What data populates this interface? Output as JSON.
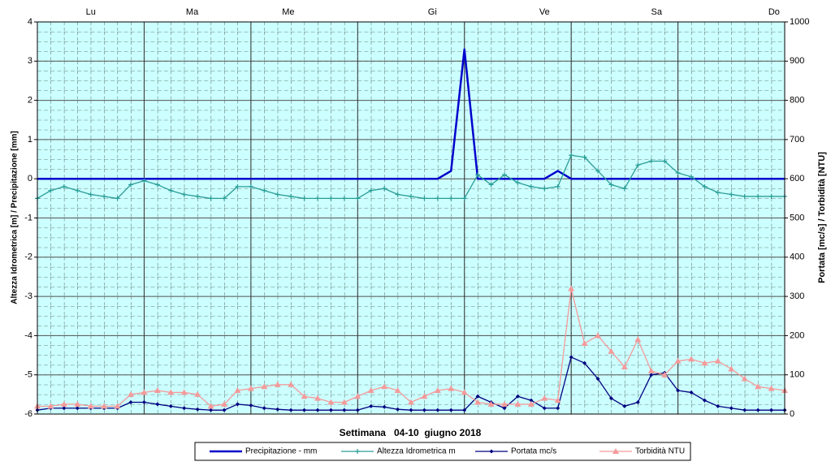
{
  "chart_data": {
    "type": "line",
    "xlabel": "Settimana   04-10  giugno 2018",
    "ylabel": "Altezza Idrometrica [m] / Precipitazione [mm]",
    "y2label": "Portata [mc/s] / Torbidità [NTU]",
    "xlim": [
      0,
      7
    ],
    "xticks": [
      {
        "value": 0.5,
        "label": "Lu"
      },
      {
        "value": 1.45,
        "label": "Ma"
      },
      {
        "value": 2.35,
        "label": "Me"
      },
      {
        "value": 3.7,
        "label": "Gi"
      },
      {
        "value": 4.75,
        "label": "Ve"
      },
      {
        "value": 5.8,
        "label": "Sa"
      },
      {
        "value": 6.9,
        "label": "Do"
      }
    ],
    "x_gridlines": [
      0,
      1,
      2,
      3,
      4,
      5,
      6,
      7
    ],
    "ylim": [
      -6,
      4
    ],
    "yticks": [
      -6,
      -5,
      -4,
      -3,
      -2,
      -1,
      0,
      1,
      2,
      3,
      4
    ],
    "y2lim": [
      0,
      1000
    ],
    "y2ticks": [
      0,
      100,
      200,
      300,
      400,
      500,
      600,
      700,
      800,
      900,
      1000
    ],
    "grid": true,
    "background": "#ccffff",
    "legend": "bottom",
    "x": [
      0,
      0.125,
      0.25,
      0.375,
      0.5,
      0.625,
      0.75,
      0.875,
      1,
      1.125,
      1.25,
      1.375,
      1.5,
      1.625,
      1.75,
      1.875,
      2,
      2.125,
      2.25,
      2.375,
      2.5,
      2.625,
      2.75,
      2.875,
      3,
      3.125,
      3.25,
      3.375,
      3.5,
      3.625,
      3.75,
      3.875,
      4,
      4.125,
      4.25,
      4.375,
      4.5,
      4.625,
      4.75,
      4.875,
      5,
      5.125,
      5.25,
      5.375,
      5.5,
      5.625,
      5.75,
      5.875,
      6,
      6.125,
      6.25,
      6.375,
      6.5,
      6.625,
      6.75,
      6.875,
      7
    ],
    "series": [
      {
        "name": "Precipitazione - mm",
        "color": "#0000cc",
        "marker": "none",
        "width": 2.5,
        "values": [
          0,
          0,
          0,
          0,
          0,
          0,
          0,
          0,
          0,
          0,
          0,
          0,
          0,
          0,
          0,
          0,
          0,
          0,
          0,
          0,
          0,
          0,
          0,
          0,
          0,
          0,
          0,
          0,
          0,
          0,
          0,
          0.2,
          3.3,
          0,
          0,
          0,
          0,
          0,
          0,
          0.2,
          0,
          0,
          0,
          0,
          0,
          0,
          0,
          0,
          0,
          0,
          0,
          0,
          0,
          0,
          0,
          0,
          0
        ]
      },
      {
        "name": "Altezza Idrometrica m",
        "color": "#2a9d96",
        "marker": "plus",
        "width": 1.3,
        "values": [
          -0.5,
          -0.3,
          -0.2,
          -0.3,
          -0.4,
          -0.45,
          -0.5,
          -0.15,
          -0.05,
          -0.15,
          -0.3,
          -0.4,
          -0.45,
          -0.5,
          -0.5,
          -0.2,
          -0.2,
          -0.3,
          -0.4,
          -0.45,
          -0.5,
          -0.5,
          -0.5,
          -0.5,
          -0.5,
          -0.3,
          -0.25,
          -0.4,
          -0.45,
          -0.5,
          -0.5,
          -0.5,
          -0.5,
          0.1,
          -0.15,
          0.1,
          -0.1,
          -0.2,
          -0.25,
          -0.2,
          0.6,
          0.55,
          0.2,
          -0.15,
          -0.25,
          0.35,
          0.45,
          0.45,
          0.15,
          0.05,
          -0.2,
          -0.35,
          -0.4,
          -0.45,
          -0.45,
          -0.45,
          -0.45
        ]
      },
      {
        "name": "Portata mc/s",
        "color": "#000080",
        "marker": "diamond",
        "axis": "y2",
        "width": 1.3,
        "values": [
          10,
          15,
          15,
          15,
          15,
          15,
          15,
          30,
          30,
          25,
          20,
          15,
          12,
          10,
          10,
          25,
          22,
          15,
          12,
          10,
          10,
          10,
          10,
          10,
          10,
          20,
          18,
          12,
          10,
          10,
          10,
          10,
          10,
          45,
          30,
          15,
          45,
          35,
          15,
          15,
          145,
          130,
          90,
          40,
          20,
          30,
          100,
          105,
          60,
          55,
          35,
          20,
          15,
          10,
          10,
          10,
          10
        ]
      },
      {
        "name": "Torbidità NTU",
        "color": "#f49a9a",
        "marker": "triangle",
        "axis": "y2",
        "width": 1.3,
        "values": [
          20,
          20,
          25,
          25,
          20,
          20,
          20,
          50,
          55,
          60,
          55,
          55,
          50,
          20,
          25,
          60,
          65,
          70,
          75,
          75,
          45,
          40,
          30,
          30,
          45,
          60,
          70,
          60,
          30,
          45,
          60,
          65,
          55,
          30,
          25,
          25,
          25,
          25,
          40,
          35,
          320,
          180,
          200,
          160,
          120,
          190,
          110,
          100,
          135,
          140,
          130,
          135,
          115,
          90,
          70,
          65,
          60
        ]
      }
    ]
  }
}
